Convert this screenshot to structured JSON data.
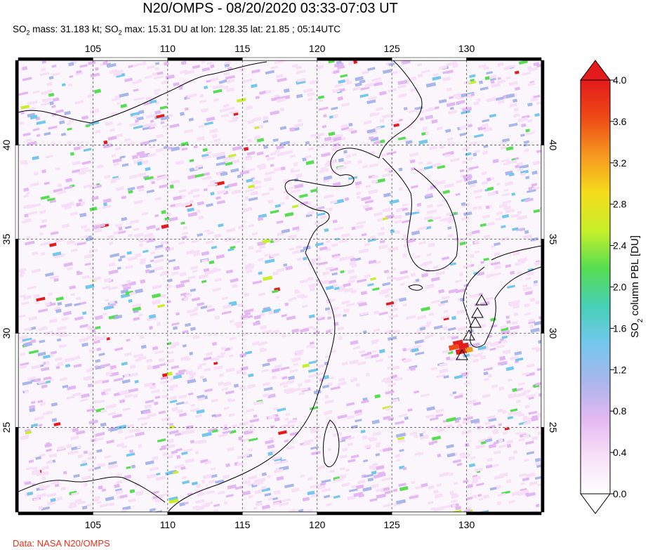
{
  "title": "N20/OMPS - 08/20/2020 03:33-07:03 UT",
  "subtitle": {
    "mass_prefix": "SO",
    "mass_sub": "2",
    "mass_text": " mass: 31.183 kt; SO",
    "max_sub": "2",
    "max_text": " max: 15.31 DU at lon: 128.35 lat: 21.85 ; 05:14UTC"
  },
  "credit": "Data: NASA N20/OMPS",
  "map": {
    "lon_ticks": [
      "105",
      "110",
      "115",
      "120",
      "125",
      "130"
    ],
    "lon_values": [
      105,
      110,
      115,
      120,
      125,
      130
    ],
    "lat_ticks": [
      "40",
      "35",
      "30",
      "25"
    ],
    "lat_values": [
      40,
      35,
      30,
      25
    ],
    "lon_range": [
      100,
      135
    ],
    "lat_range": [
      20.5,
      44.5
    ],
    "volcano_marker": "triangle-icon"
  },
  "colorbar": {
    "label_main": "SO",
    "label_sub": "2",
    "label_rest": " column PBL [DU]",
    "ticks": [
      "4.0",
      "3.6",
      "3.2",
      "2.8",
      "2.4",
      "2.0",
      "1.6",
      "1.2",
      "0.8",
      "0.4",
      "0.0"
    ],
    "colors": [
      "#ffffff",
      "#f7e0f7",
      "#e3b8f2",
      "#a9b6ec",
      "#73c7ee",
      "#47d0b5",
      "#56dd52",
      "#c8ef2a",
      "#f5dc1a",
      "#f69820",
      "#ee4a16",
      "#e41a1c"
    ],
    "range": [
      0.0,
      4.0
    ]
  }
}
